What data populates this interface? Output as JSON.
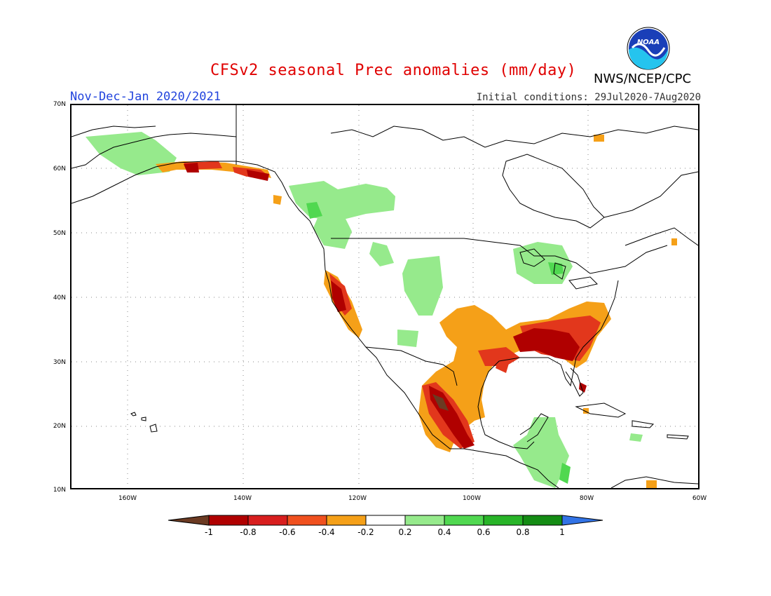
{
  "header": {
    "title": "CFSv2 seasonal Prec anomalies (mm/day)",
    "period": "Nov-Dec-Jan 2020/2021",
    "initial_conditions": "Initial conditions: 29Jul2020-7Aug2020",
    "agency": "NWS/NCEP/CPC",
    "logo_text": "NOAA"
  },
  "map": {
    "region": "North America",
    "lat_labels": [
      "70N",
      "60N",
      "50N",
      "40N",
      "30N",
      "20N",
      "10N"
    ],
    "lon_labels": [
      "160W",
      "140W",
      "120W",
      "100W",
      "80W",
      "60W"
    ],
    "grid": "dotted"
  },
  "legend": {
    "tick_labels": [
      "-1",
      "-0.8",
      "-0.6",
      "-0.4",
      "-0.2",
      "0.2",
      "0.4",
      "0.6",
      "0.8",
      "1"
    ],
    "colors": [
      "#6b3a22",
      "#b00000",
      "#d81e1e",
      "#f0501e",
      "#f5a018",
      "#ffffff",
      "#96ea8c",
      "#50d850",
      "#28b428",
      "#148c14",
      "#3273e6"
    ]
  },
  "colors": {
    "title": "#e00000",
    "period": "#2244dd",
    "dry_strong": "#b00000",
    "dry_moderate": "#e2371c",
    "dry_light": "#f5a018",
    "wet_light": "#96ea8c",
    "wet_moderate": "#50d850"
  }
}
